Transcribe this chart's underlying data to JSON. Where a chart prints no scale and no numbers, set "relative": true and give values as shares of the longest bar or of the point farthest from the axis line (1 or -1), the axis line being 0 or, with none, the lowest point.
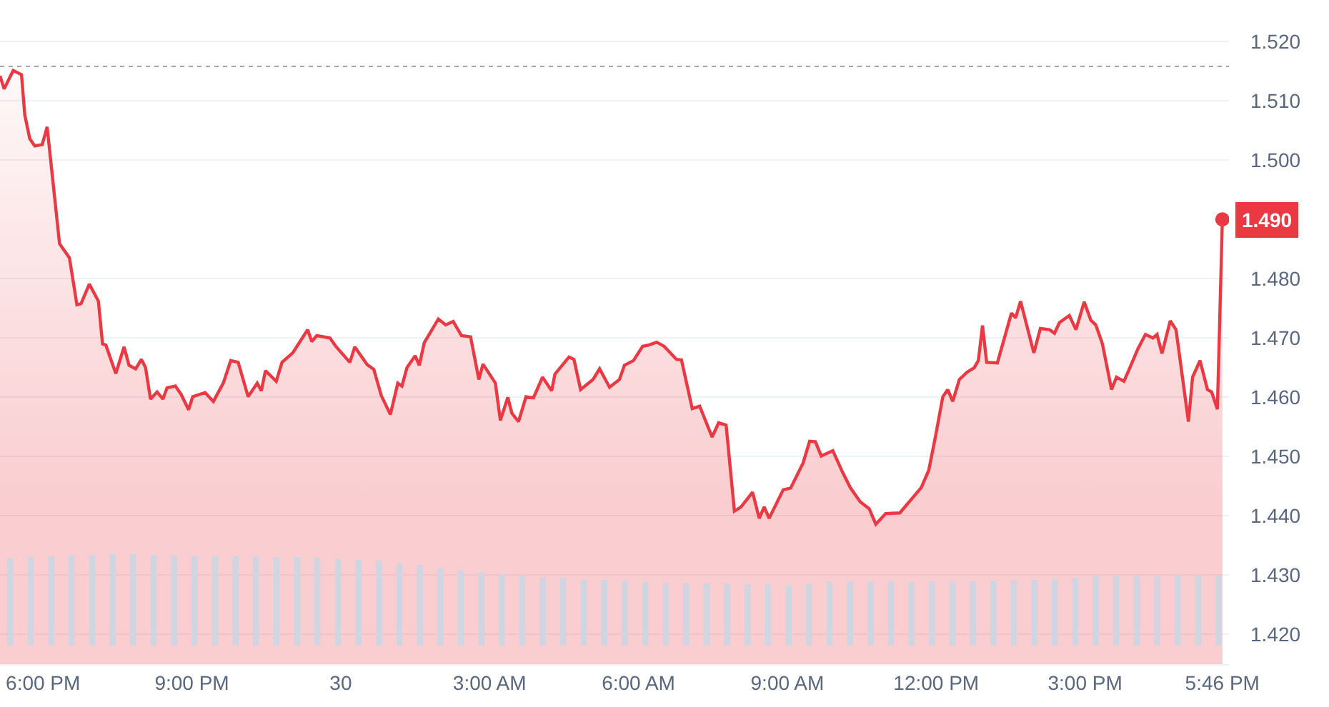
{
  "chart_data": [
    {
      "type": "area",
      "x": [
        "--01-29T17:08",
        "--01-29T17:13",
        "--01-29T17:24",
        "--01-29T17:34",
        "--01-29T17:38",
        "--01-29T17:44",
        "--01-29T17:50",
        "--01-29T17:59",
        "--01-29T18:05",
        "--01-29T18:20",
        "--01-29T18:32",
        "--01-29T18:41",
        "--01-29T18:46",
        "--01-29T18:56",
        "--01-29T19:07",
        "--01-29T19:12",
        "--01-29T19:16",
        "--01-29T19:28",
        "--01-29T19:38",
        "--01-29T19:44",
        "--01-29T19:52",
        "--01-29T19:59",
        "--01-29T20:04",
        "--01-29T20:10",
        "--01-29T20:18",
        "--01-29T20:25",
        "--01-29T20:30",
        "--01-29T20:40",
        "--01-29T20:47",
        "--01-29T20:56",
        "--01-29T21:01",
        "--01-29T21:16",
        "--01-29T21:26",
        "--01-29T21:38",
        "--01-29T21:47",
        "--01-29T21:56",
        "--01-29T22:08",
        "--01-29T22:19",
        "--01-29T22:24",
        "--01-29T22:29",
        "--01-29T22:42",
        "--01-29T22:49",
        "--01-29T23:02",
        "--01-29T23:20",
        "--01-29T23:25",
        "--01-29T23:31",
        "--01-29T23:47",
        "--01-29T23:54",
        "--01-30T00:11",
        "--01-30T00:17",
        "--01-30T00:32",
        "--01-30T00:40",
        "--01-30T00:49",
        "--01-30T01:00",
        "--01-30T01:09",
        "--01-30T01:14",
        "--01-30T01:20",
        "--01-30T01:30",
        "--01-30T01:35",
        "--01-30T01:41",
        "--01-30T01:58",
        "--01-30T02:07",
        "--01-30T02:16",
        "--01-30T02:26",
        "--01-30T02:37",
        "--01-30T02:47",
        "--01-30T02:52",
        "--01-30T03:07",
        "--01-30T03:13",
        "--01-30T03:22",
        "--01-30T03:27",
        "--01-30T03:35",
        "--01-30T03:44",
        "--01-30T03:53",
        "--01-30T04:04",
        "--01-30T04:15",
        "--01-30T04:19",
        "--01-30T04:36",
        "--01-30T04:42",
        "--01-30T04:50",
        "--01-30T05:05",
        "--01-30T05:13",
        "--01-30T05:25",
        "--01-30T05:37",
        "--01-30T05:43",
        "--01-30T05:54",
        "--01-30T06:05",
        "--01-30T06:12",
        "--01-30T06:22",
        "--01-30T06:31",
        "--01-30T06:46",
        "--01-30T06:52",
        "--01-30T07:05",
        "--01-30T07:14",
        "--01-30T07:29",
        "--01-30T07:37",
        "--01-30T07:46",
        "--01-30T07:56",
        "--01-30T08:04",
        "--01-30T08:18",
        "--01-30T08:26",
        "--01-30T08:32",
        "--01-30T08:38",
        "--01-30T08:55",
        "--01-30T09:04",
        "--01-30T09:19",
        "--01-30T09:27",
        "--01-30T09:34",
        "--01-30T09:41",
        "--01-30T09:55",
        "--01-30T10:07",
        "--01-30T10:16",
        "--01-30T10:28",
        "--01-30T10:39",
        "--01-30T10:47",
        "--01-30T10:59",
        "--01-30T11:16",
        "--01-30T11:42",
        "--01-30T11:51",
        "--01-30T11:59",
        "--01-30T12:08",
        "--01-30T12:14",
        "--01-30T12:20",
        "--01-30T12:28",
        "--01-30T12:37",
        "--01-30T12:46",
        "--01-30T12:51",
        "--01-30T12:56",
        "--01-30T13:01",
        "--01-30T13:14",
        "--01-30T13:31",
        "--01-30T13:36",
        "--01-30T13:42",
        "--01-30T13:58",
        "--01-30T14:06",
        "--01-30T14:17",
        "--01-30T14:23",
        "--01-30T14:29",
        "--01-30T14:41",
        "--01-30T14:49",
        "--01-30T14:59",
        "--01-30T15:07",
        "--01-30T15:13",
        "--01-30T15:21",
        "--01-30T15:32",
        "--01-30T15:38",
        "--01-30T15:47",
        "--01-30T15:53",
        "--01-30T16:04",
        "--01-30T16:13",
        "--01-30T16:22",
        "--01-30T16:27",
        "--01-30T16:33",
        "--01-30T16:43",
        "--01-30T16:50",
        "--01-30T17:05",
        "--01-30T17:10",
        "--01-30T17:19",
        "--01-30T17:28",
        "--01-30T17:33",
        "--01-30T17:40",
        "--01-30T17:46"
      ],
      "series": [
        {
          "color": "#ea3943",
          "values": [
            1.5142,
            1.512,
            1.5151,
            1.5144,
            1.5076,
            1.5036,
            1.5024,
            1.5026,
            1.5056,
            1.4859,
            1.4835,
            1.4756,
            1.4758,
            1.4791,
            1.4762,
            1.469,
            1.4688,
            1.464,
            1.4685,
            1.4654,
            1.4648,
            1.4664,
            1.465,
            1.4597,
            1.4609,
            1.4597,
            1.4616,
            1.4619,
            1.4605,
            1.4579,
            1.4601,
            1.4608,
            1.4593,
            1.4624,
            1.4662,
            1.4659,
            1.4601,
            1.4624,
            1.4611,
            1.4645,
            1.4627,
            1.4659,
            1.4675,
            1.4714,
            1.4694,
            1.4704,
            1.47,
            1.4686,
            1.4659,
            1.4685,
            1.4655,
            1.4647,
            1.4603,
            1.4571,
            1.4624,
            1.4619,
            1.465,
            1.467,
            1.4654,
            1.4692,
            1.4732,
            1.4722,
            1.4728,
            1.4704,
            1.4702,
            1.463,
            1.4656,
            1.4624,
            1.4561,
            1.46,
            1.4573,
            1.4559,
            1.4601,
            1.4599,
            1.4634,
            1.4611,
            1.4639,
            1.4668,
            1.4664,
            1.4613,
            1.463,
            1.4648,
            1.4617,
            1.463,
            1.4654,
            1.4662,
            1.4686,
            1.4688,
            1.4693,
            1.4686,
            1.4664,
            1.4663,
            1.4581,
            1.4585,
            1.4533,
            1.4557,
            1.4553,
            1.4408,
            1.4415,
            1.444,
            1.4396,
            1.4415,
            1.4396,
            1.4444,
            1.4447,
            1.4489,
            1.4526,
            1.4525,
            1.4501,
            1.451,
            1.4473,
            1.4448,
            1.4424,
            1.4412,
            1.4386,
            1.4404,
            1.4405,
            1.4448,
            1.4477,
            1.4533,
            1.4601,
            1.4613,
            1.4593,
            1.463,
            1.4642,
            1.465,
            1.4662,
            1.4721,
            1.4659,
            1.4658,
            1.4742,
            1.4734,
            1.4762,
            1.4675,
            1.4716,
            1.4714,
            1.4708,
            1.4726,
            1.4738,
            1.4714,
            1.4761,
            1.473,
            1.4722,
            1.469,
            1.4613,
            1.4634,
            1.4627,
            1.4646,
            1.4682,
            1.4706,
            1.47,
            1.4706,
            1.4674,
            1.4729,
            1.4714,
            1.4559,
            1.4634,
            1.4662,
            1.4613,
            1.4609,
            1.458,
            1.49
          ]
        }
      ],
      "xlim": [
        "--01-29T17:08",
        "--01-30T17:54"
      ],
      "xticks": [
        {
          "value": "--01-29T18:00",
          "label": "6:00 PM"
        },
        {
          "value": "--01-29T21:00",
          "label": "9:00 PM"
        },
        {
          "value": "--01-30T00:00",
          "label": "30"
        },
        {
          "value": "--01-30T03:00",
          "label": "3:00 AM"
        },
        {
          "value": "--01-30T06:00",
          "label": "6:00 AM"
        },
        {
          "value": "--01-30T09:00",
          "label": "9:00 AM"
        },
        {
          "value": "--01-30T12:00",
          "label": "12:00 PM"
        },
        {
          "value": "--01-30T15:00",
          "label": "3:00 PM"
        },
        {
          "value": "--01-30T17:46",
          "label": "5:46 PM"
        }
      ],
      "ylim": [
        1.415,
        1.527
      ],
      "yticks": [
        {
          "value": 1.42,
          "label": "1.420"
        },
        {
          "value": 1.43,
          "label": "1.430"
        },
        {
          "value": 1.44,
          "label": "1.440"
        },
        {
          "value": 1.45,
          "label": "1.450"
        },
        {
          "value": 1.46,
          "label": "1.460"
        },
        {
          "value": 1.47,
          "label": "1.470"
        },
        {
          "value": 1.48,
          "label": "1.480"
        },
        {
          "value": 1.5,
          "label": "1.500"
        },
        {
          "value": 1.51,
          "label": "1.510"
        },
        {
          "value": 1.52,
          "label": "1.520"
        }
      ],
      "grid": "y",
      "ref_lines": [
        {
          "axis": "y",
          "value": 1.5158,
          "color": "#a0a7b3",
          "line_style": "dotted"
        }
      ],
      "annotations": [
        {
          "text": "1.490",
          "x": "--01-30T17:46",
          "y": 1.49
        }
      ]
    },
    {
      "type": "bar",
      "relative": true,
      "color": "#cfd6e2",
      "categories": [
        null,
        null,
        null,
        null,
        null,
        null,
        null,
        null,
        null,
        null,
        null,
        null,
        null,
        null,
        null,
        null,
        null,
        null,
        null,
        null,
        null,
        null,
        null,
        null,
        null,
        null,
        null,
        null,
        null,
        null,
        null,
        null,
        null,
        null,
        null,
        null,
        null,
        null,
        null,
        null,
        null,
        null,
        null,
        null,
        null,
        null,
        null,
        null,
        null,
        null,
        null,
        null,
        null,
        null,
        null,
        null,
        null,
        null,
        null,
        null
      ],
      "values": [
        0.96,
        0.97,
        0.98,
        0.99,
        0.99,
        1.0,
        1.0,
        0.99,
        0.99,
        0.98,
        0.98,
        0.98,
        0.97,
        0.97,
        0.97,
        0.96,
        0.95,
        0.94,
        0.93,
        0.9,
        0.88,
        0.85,
        0.82,
        0.8,
        0.78,
        0.77,
        0.75,
        0.74,
        0.72,
        0.72,
        0.71,
        0.7,
        0.69,
        0.69,
        0.68,
        0.68,
        0.67,
        0.67,
        0.66,
        0.68,
        0.7,
        0.7,
        0.7,
        0.7,
        0.7,
        0.7,
        0.7,
        0.7,
        0.71,
        0.71,
        0.72,
        0.73,
        0.74,
        0.76,
        0.76,
        0.76,
        0.76,
        0.77,
        0.77,
        0.76
      ]
    }
  ]
}
